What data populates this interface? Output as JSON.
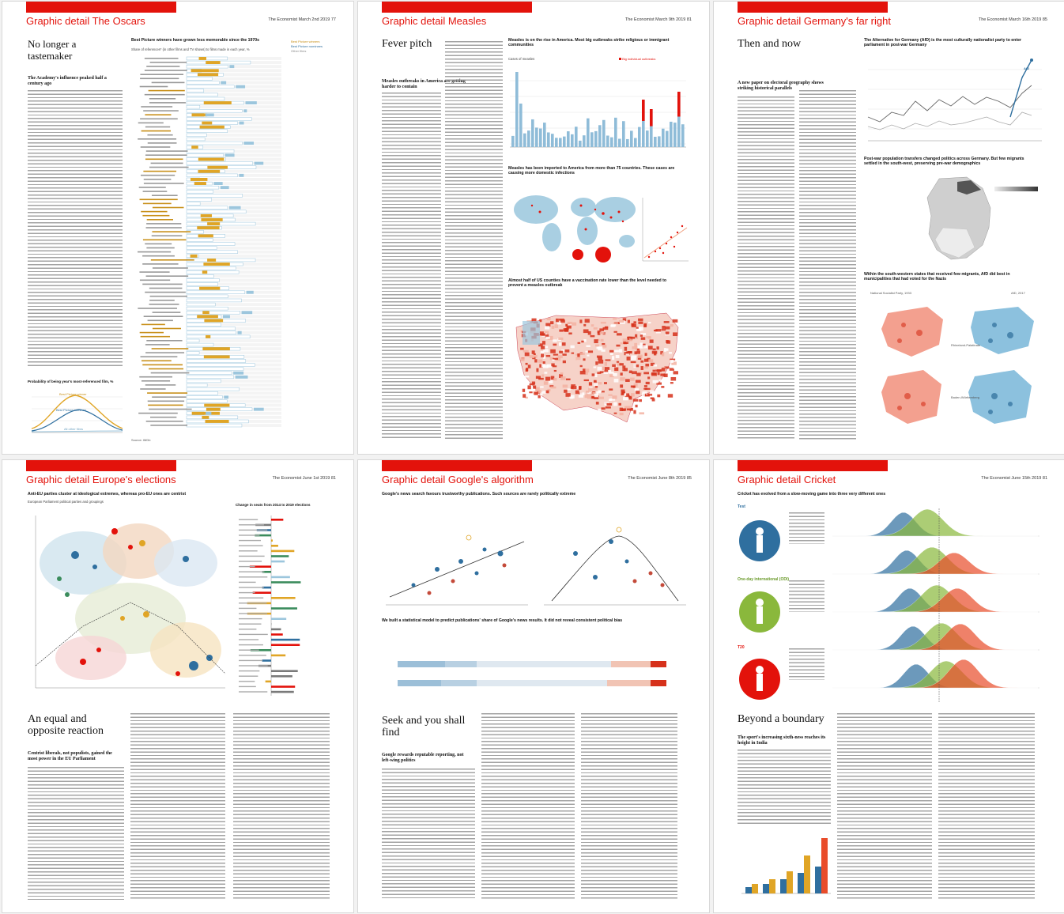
{
  "pages": [
    {
      "section": "Graphic detail",
      "topic": "The Oscars",
      "folio": "The Economist March 2nd 2019  77",
      "headline": "No longer a tastemaker",
      "rubric": "The Academy's influence peaked half a century ago",
      "chart_title": "Best Picture winners have grown less memorable since the 1970s",
      "chart_subtitle": "Share of references* (in other films and TV shows) to films made in each year, %",
      "legend": [
        "Best Picture winners",
        "Best Picture nominees",
        "Other films"
      ],
      "small_chart_title": "Probability of being year's most-referenced film, %",
      "small_chart_labels": [
        "Best Picture winner",
        "Best Picture nominee",
        "All other films"
      ],
      "source": "Source: IMDb"
    },
    {
      "section": "Graphic detail",
      "topic": "Measles",
      "folio": "The Economist March 9th 2019  81",
      "headline": "Fever pitch",
      "rubric": "Measles outbreaks in America are getting harder to contain",
      "chart1_title": "Measles is on the rise in America. Most big outbreaks strike religious or immigrant communities",
      "chart1_sub": "Cases of measles",
      "chart1_legend": "Big individual outbreaks",
      "chart2_title": "Measles has been imported to America from more than 75 countries. These cases are causing more domestic infections",
      "chart3_title": "Almost half of US counties have a vaccination rate lower than the level needed to prevent a measles outbreak"
    },
    {
      "section": "Graphic detail",
      "topic": "Germany's far right",
      "folio": "The Economist March 16th 2019  85",
      "headline": "Then and now",
      "rubric": "A new paper on electoral geography shows striking historical parallels",
      "chart1_title": "The Alternative for Germany (AfD) is the most culturally nationalist party to enter parliament in post-war Germany",
      "chart1_label": "AfD",
      "chart2_title": "Post-war population transfers changed politics across Germany. But few migrants settled in the south-west, preserving pre-war demographics",
      "chart3_title": "Within the south-western states that received few migrants, AfD did best in municipalities that had voted for the Nazis",
      "map_labels": [
        "National Socialist Party, 1933",
        "AfD, 2017",
        "Rhineland-Palatinate",
        "Baden-Württemberg"
      ]
    },
    {
      "section": "Graphic detail",
      "topic": "Europe's elections",
      "folio": "The Economist June 1st 2019  81",
      "chart_title": "Anti-EU parties cluster at ideological extremes, whereas pro-EU ones are centrist",
      "chart_sub": "European Parliament political parties and groupings",
      "side_title": "Change in seats from 2014 to 2019 elections",
      "headline": "An equal and opposite reaction",
      "rubric": "Centrist liberals, not populists, gained the most power in the EU Parliament"
    },
    {
      "section": "Graphic detail",
      "topic": "Google's algorithm",
      "folio": "The Economist June 8th 2019  85",
      "chart1_title": "Google's news search favours trustworthy publications. Such sources are rarely politically extreme",
      "chart2_title": "We built a statistical model to predict publications' share of Google's news results. It did not reveal consistent political bias",
      "headline": "Seek and you shall find",
      "rubric": "Google rewards reputable reporting, not left-wing politics"
    },
    {
      "section": "Graphic detail",
      "topic": "Cricket",
      "folio": "The Economist June 15th 2019  81",
      "chart_title": "Cricket has evolved from a slow-moving game into three very different ones",
      "formats": [
        "Test",
        "One-day international (ODI)",
        "T20"
      ],
      "headline": "Beyond a boundary",
      "rubric": "The sport's increasing sixth-ness reaches its height in India"
    }
  ],
  "colors": {
    "economist_red": "#e3120b",
    "gold": "#e0a526",
    "blue": "#2f6f9f",
    "light_blue": "#9cc6dd",
    "grid": "#dddddd"
  }
}
